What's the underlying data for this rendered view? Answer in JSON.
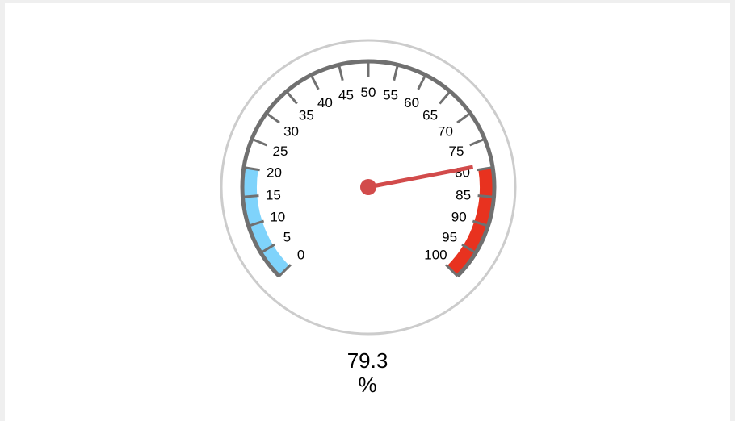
{
  "chart_data": {
    "type": "gauge",
    "min": 0,
    "max": 100,
    "value": 79.3,
    "value_text": "79.3",
    "unit": "%",
    "major_step": 5,
    "tick_labels": [
      "0",
      "5",
      "10",
      "15",
      "20",
      "25",
      "30",
      "35",
      "40",
      "45",
      "50",
      "55",
      "60",
      "65",
      "70",
      "75",
      "80",
      "85",
      "90",
      "95",
      "100"
    ],
    "bands": [
      {
        "from": 0,
        "to": 20,
        "color": "#7fd3fb"
      },
      {
        "from": 80,
        "to": 100,
        "color": "#e8321f"
      }
    ],
    "colors": {
      "outer_ring": "#cccccc",
      "scale": "#707070",
      "needle": "#d24b4b"
    }
  }
}
